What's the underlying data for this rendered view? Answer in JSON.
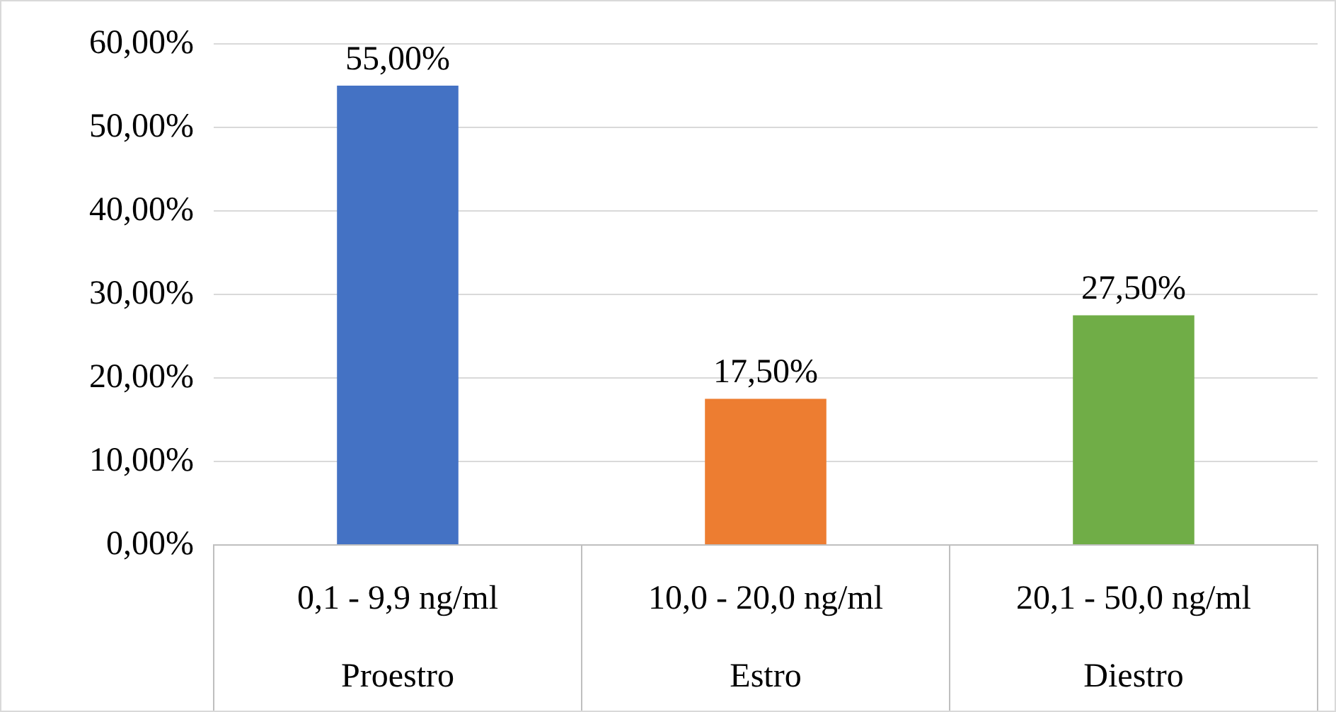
{
  "chart_data": {
    "type": "bar",
    "categories": [
      "0,1 - 9,9 ng/ml\nProestro",
      "10,0 - 20,0 ng/ml\nEstro",
      "20,1 - 50,0 ng/ml\nDiestro"
    ],
    "values": [
      55,
      17.5,
      27.5
    ],
    "colors": [
      "#4472c4",
      "#ed7d31",
      "#70ad47"
    ],
    "value_labels": [
      "55,00%",
      "17,50%",
      "27,50%"
    ],
    "ylim": [
      0,
      60
    ],
    "yticks": [
      {
        "value": 0,
        "label": "0,00%"
      },
      {
        "value": 10,
        "label": "10,00%"
      },
      {
        "value": 20,
        "label": "20,00%"
      },
      {
        "value": 30,
        "label": "30,00%"
      },
      {
        "value": 40,
        "label": "40,00%"
      },
      {
        "value": 50,
        "label": "50,00%"
      },
      {
        "value": 60,
        "label": "60,00%"
      }
    ],
    "grid": "y",
    "legend": false
  }
}
